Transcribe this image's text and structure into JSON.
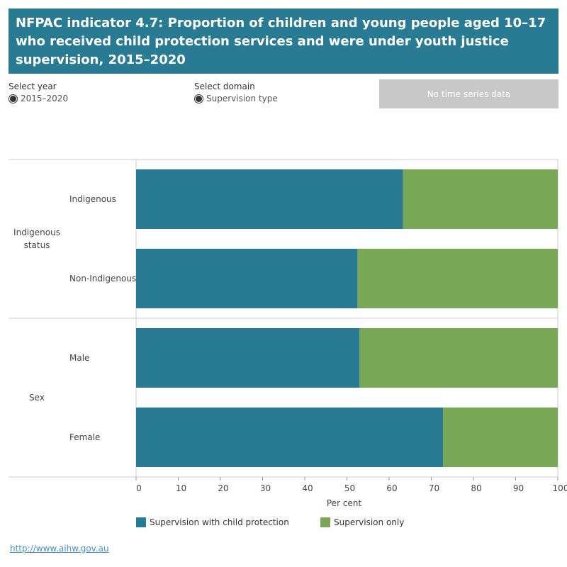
{
  "header": {
    "title": "NFPAC indicator 4.7: Proportion of children and young people aged 10–17 who received child protection services and were under youth justice supervision, 2015–2020"
  },
  "controls": {
    "year_label": "Select year",
    "year_value": "2015–2020",
    "domain_label": "Select domain",
    "domain_value": "Supervision type",
    "no_time_series": "No time series data"
  },
  "chart_data": {
    "type": "bar",
    "orientation": "horizontal",
    "stacked": true,
    "groups": [
      {
        "name": "Indigenous status",
        "categories": [
          "Indigenous",
          "Non-Indigenous"
        ]
      },
      {
        "name": "Sex",
        "categories": [
          "Male",
          "Female"
        ]
      }
    ],
    "categories": [
      "Indigenous",
      "Non-Indigenous",
      "Male",
      "Female"
    ],
    "series": [
      {
        "name": "Supervision with child protection",
        "values": [
          63.3,
          52.5,
          53.0,
          72.8
        ],
        "color": "#287b93"
      },
      {
        "name": "Supervision only",
        "values": [
          36.7,
          47.5,
          47.0,
          27.2
        ],
        "color": "#78a755"
      }
    ],
    "xlabel": "Per cent",
    "xlim": [
      0,
      100
    ],
    "xticks": [
      0,
      10,
      20,
      30,
      40,
      50,
      60,
      70,
      80,
      90,
      100
    ],
    "legend_position": "bottom",
    "grid": false
  },
  "footer": {
    "url": "http://www.aihw.gov.au"
  }
}
